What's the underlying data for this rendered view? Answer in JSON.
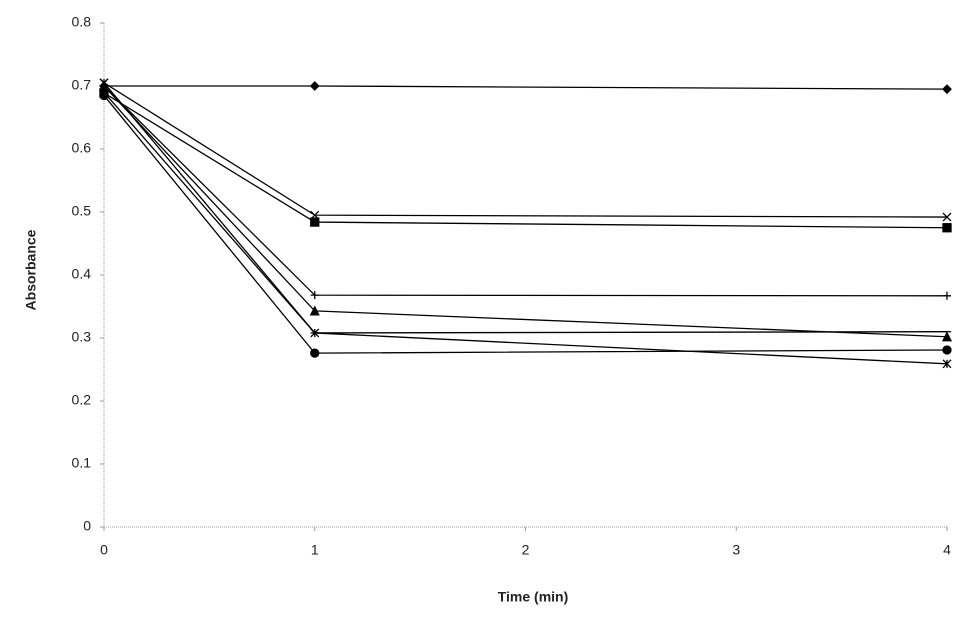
{
  "chart_data": {
    "type": "line",
    "x_label": "Time (min)",
    "y_label": "Absorbance",
    "x": [
      0,
      1,
      4
    ],
    "series": [
      {
        "marker": "diamond",
        "color": "#000000",
        "values": [
          0.7,
          0.7,
          0.695
        ]
      },
      {
        "marker": "x",
        "color": "#000000",
        "values": [
          0.705,
          0.495,
          0.492
        ]
      },
      {
        "marker": "square",
        "color": "#000000",
        "values": [
          0.689,
          0.484,
          0.475
        ]
      },
      {
        "marker": "plus",
        "color": "#000000",
        "values": [
          0.7,
          0.368,
          0.367
        ]
      },
      {
        "marker": "triangle",
        "color": "#000000",
        "values": [
          0.7,
          0.343,
          0.302
        ]
      },
      {
        "marker": "asterisk",
        "color": "#000000",
        "values": [
          0.705,
          0.308,
          0.259
        ]
      },
      {
        "marker": "dash",
        "color": "#000000",
        "values": [
          0.69,
          0.308,
          0.31
        ]
      },
      {
        "marker": "circle",
        "color": "#000000",
        "values": [
          0.685,
          0.276,
          0.281
        ]
      }
    ],
    "xlim": [
      0,
      4
    ],
    "xticks": [
      0,
      1,
      2,
      3,
      4
    ],
    "ylim": [
      0,
      0.8
    ],
    "yticks": [
      0,
      0.1,
      0.2,
      0.3,
      0.4,
      0.5,
      0.6,
      0.7,
      0.8
    ],
    "grid": false
  }
}
